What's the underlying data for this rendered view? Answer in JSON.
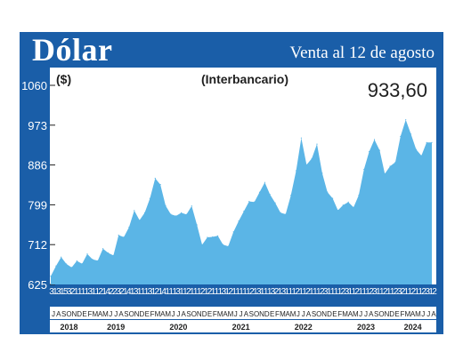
{
  "header": {
    "title": "Dólar",
    "subtitle": "Venta al 12 de agosto"
  },
  "colors": {
    "frame": "#1a5ea8",
    "area_fill": "#5bb5e6",
    "panel": "#ffffff",
    "axis_text": "#1f1f1f"
  },
  "chart_data": {
    "type": "area",
    "title": "(Interbancario)",
    "ylabel": "($)",
    "last_value_label": "933,60",
    "ylim": [
      625,
      1060
    ],
    "yticks": [
      625,
      712,
      799,
      886,
      973,
      1060
    ],
    "yticklabels": [
      "625",
      "712",
      "799",
      "886",
      "973",
      "1060"
    ],
    "grid": false,
    "day_ticks": [
      "3",
      "1",
      "3",
      "1",
      "5",
      "3",
      "2",
      "1",
      "1",
      "1",
      "1",
      "3",
      "1",
      "1",
      "2",
      "1",
      "4",
      "2",
      "2",
      "3",
      "2",
      "1",
      "4",
      "1",
      "3",
      "1",
      "1",
      "1",
      "3",
      "1",
      "2",
      "1",
      "4",
      "1",
      "1",
      "1",
      "3",
      "1",
      "1",
      "2",
      "1",
      "1",
      "1",
      "2",
      "1",
      "2",
      "1",
      "1",
      "1",
      "3",
      "1",
      "2",
      "1",
      "1",
      "1",
      "1",
      "1",
      "2",
      "1",
      "3",
      "1",
      "1",
      "1",
      "3",
      "2",
      "1",
      "3",
      "1",
      "1",
      "1",
      "2",
      "1",
      "1",
      "2",
      "1",
      "1",
      "1",
      "2",
      "3",
      "1",
      "1",
      "1",
      "1",
      "2",
      "3",
      "1",
      "1",
      "2",
      "1",
      "1",
      "1",
      "2",
      "3",
      "1",
      "1",
      "2",
      "1",
      "1",
      "2",
      "3",
      "2",
      "1",
      "1",
      "2",
      "1",
      "1",
      "2",
      "3",
      "1",
      "2"
    ],
    "month_ticks": [
      "J",
      "A",
      "S",
      "O",
      "N",
      "D",
      "E",
      "F",
      "M",
      "A",
      "M",
      "J",
      "J",
      "A",
      "S",
      "O",
      "N",
      "D",
      "E",
      "F",
      "M",
      "A",
      "M",
      "J",
      "J",
      "A",
      "S",
      "O",
      "N",
      "D",
      "E",
      "F",
      "M",
      "A",
      "M",
      "J",
      "J",
      "A",
      "S",
      "O",
      "N",
      "D",
      "E",
      "F",
      "M",
      "A",
      "M",
      "J",
      "J",
      "A",
      "S",
      "O",
      "N",
      "D",
      "E",
      "F",
      "M",
      "A",
      "M",
      "J",
      "J",
      "A",
      "S",
      "O",
      "N",
      "D",
      "E",
      "F",
      "M",
      "A",
      "M",
      "J",
      "J",
      "A"
    ],
    "years": [
      "2018",
      "2019",
      "2020",
      "2021",
      "2022",
      "2023",
      "2024"
    ],
    "series": [
      {
        "x": [
          "2018-07",
          "2018-08",
          "2018-09",
          "2018-10",
          "2018-11",
          "2018-12",
          "2019-01",
          "2019-02",
          "2019-03",
          "2019-04",
          "2019-05",
          "2019-06",
          "2019-07",
          "2019-08",
          "2019-09",
          "2019-10",
          "2019-11",
          "2019-12",
          "2020-01",
          "2020-02",
          "2020-03",
          "2020-04",
          "2020-05",
          "2020-06",
          "2020-07",
          "2020-08",
          "2020-09",
          "2020-10",
          "2020-11",
          "2020-12",
          "2021-01",
          "2021-02",
          "2021-03",
          "2021-04",
          "2021-05",
          "2021-06",
          "2021-07",
          "2021-08",
          "2021-09",
          "2021-10",
          "2021-11",
          "2021-12",
          "2022-01",
          "2022-02",
          "2022-03",
          "2022-04",
          "2022-05",
          "2022-06",
          "2022-07",
          "2022-08",
          "2022-09",
          "2022-10",
          "2022-11",
          "2022-12",
          "2023-01",
          "2023-02",
          "2023-03",
          "2023-04",
          "2023-05",
          "2023-06",
          "2023-07",
          "2023-08",
          "2023-09",
          "2023-10",
          "2023-11",
          "2023-12",
          "2024-01",
          "2024-02",
          "2024-03",
          "2024-04",
          "2024-05",
          "2024-06",
          "2024-07",
          "2024-08"
        ],
        "values": [
          651,
          667,
          680,
          676,
          662,
          670,
          675,
          690,
          672,
          680,
          700,
          702,
          690,
          728,
          735,
          750,
          780,
          770,
          780,
          805,
          860,
          840,
          805,
          780,
          770,
          788,
          778,
          790,
          760,
          710,
          720,
          732,
          728,
          720,
          710,
          735,
          770,
          785,
          800,
          810,
          825,
          840,
          825,
          800,
          790,
          780,
          815,
          880,
          945,
          880,
          905,
          930,
          860,
          830,
          810,
          795,
          800,
          800,
          800,
          820,
          870,
          920,
          940,
          910,
          870,
          880,
          900,
          950,
          980,
          960,
          920,
          900,
          940,
          933.6
        ]
      }
    ]
  }
}
